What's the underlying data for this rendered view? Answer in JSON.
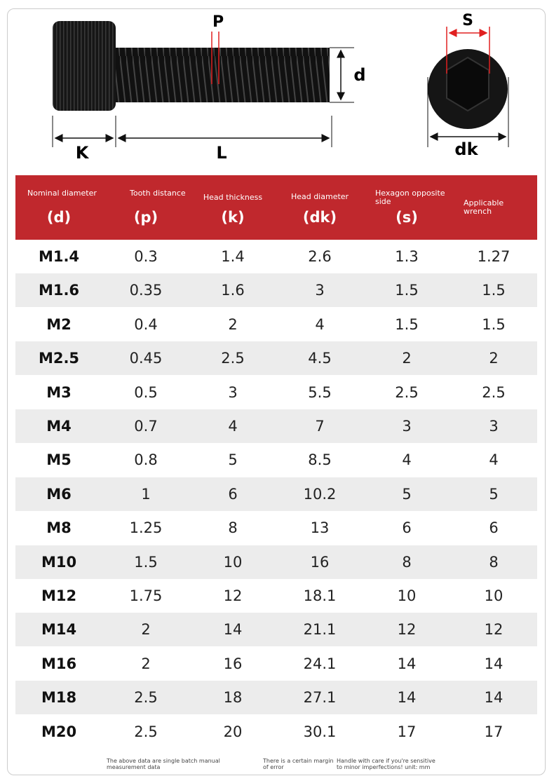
{
  "diagram": {
    "pitch": "P",
    "diameter": "d",
    "head_length": "K",
    "length": "L",
    "hex_size": "S",
    "head_diameter": "dk"
  },
  "table": {
    "columns": [
      {
        "label": "Nominal diameter",
        "symbol": "(d)"
      },
      {
        "label": "Tooth distance",
        "symbol": "(p)"
      },
      {
        "label": "Head thickness",
        "symbol": "(k)"
      },
      {
        "label": "Head diameter",
        "symbol": "(dk)"
      },
      {
        "label": "Hexagon opposite side",
        "symbol": "(s)"
      },
      {
        "label": "Applicable wrench"
      }
    ],
    "rows": [
      [
        "M1.4",
        0.3,
        1.4,
        2.6,
        1.3,
        1.27
      ],
      [
        "M1.6",
        0.35,
        1.6,
        3,
        1.5,
        1.5
      ],
      [
        "M2",
        0.4,
        2,
        4,
        1.5,
        1.5
      ],
      [
        "M2.5",
        0.45,
        2.5,
        4.5,
        2,
        2
      ],
      [
        "M3",
        0.5,
        3,
        5.5,
        2.5,
        2.5
      ],
      [
        "M4",
        0.7,
        4,
        7,
        3,
        3
      ],
      [
        "M5",
        0.8,
        5,
        8.5,
        4,
        4
      ],
      [
        "M6",
        1,
        6,
        10.2,
        5,
        5
      ],
      [
        "M8",
        1.25,
        8,
        13,
        6,
        6
      ],
      [
        "M10",
        1.5,
        10,
        16,
        8,
        8
      ],
      [
        "M12",
        1.75,
        12,
        18.1,
        10,
        10
      ],
      [
        "M14",
        2,
        14,
        21.1,
        12,
        12
      ],
      [
        "M16",
        2,
        16,
        24.1,
        14,
        14
      ],
      [
        "M18",
        2.5,
        18,
        27.1,
        14,
        14
      ],
      [
        "M20",
        2.5,
        20,
        30.1,
        17,
        17
      ]
    ]
  },
  "footer": {
    "notes": [
      "The above data are single batch manual measurement data",
      "There is a certain margin of error",
      "Handle with care if you're sensitive to minor imperfections! unit: mm"
    ]
  }
}
